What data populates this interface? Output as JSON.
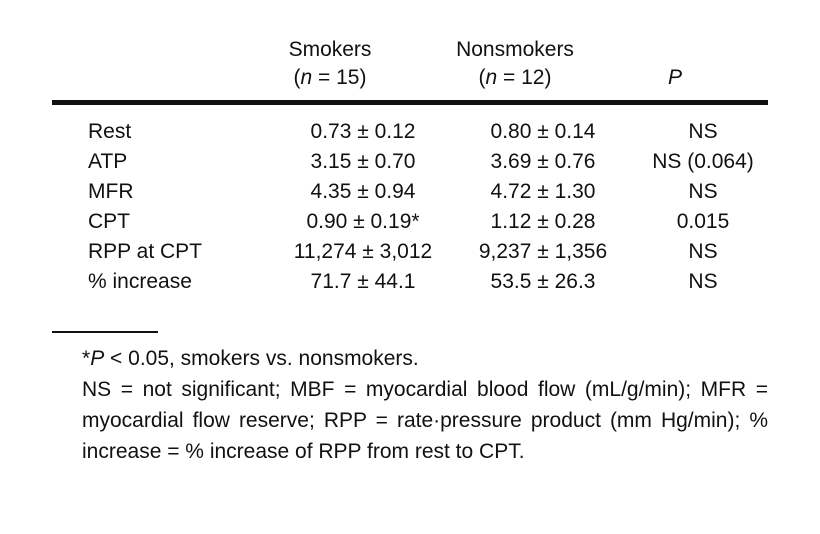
{
  "header": {
    "col1_name": "Smokers",
    "col1_n": "(n = 15)",
    "col2_name": "Nonsmokers",
    "col2_n": "(n = 12)",
    "col3_name": "P"
  },
  "rows": [
    {
      "label": "Rest",
      "smokers": "0.73 ± 0.12",
      "nonsmokers": "0.80 ± 0.14",
      "p": "NS"
    },
    {
      "label": "ATP",
      "smokers": "3.15 ± 0.70",
      "nonsmokers": "3.69 ± 0.76",
      "p": "NS (0.064)"
    },
    {
      "label": "MFR",
      "smokers": "4.35 ± 0.94",
      "nonsmokers": "4.72 ± 1.30",
      "p": "NS"
    },
    {
      "label": "CPT",
      "smokers": "0.90 ± 0.19*",
      "nonsmokers": "1.12 ± 0.28",
      "p": "0.015"
    },
    {
      "label": "RPP at CPT",
      "smokers": "11,274 ± 3,012",
      "nonsmokers": "9,237 ± 1,356",
      "p": "NS"
    },
    {
      "label": "% increase",
      "smokers": "71.7 ± 44.1",
      "nonsmokers": "53.5 ± 26.3",
      "p": "NS"
    }
  ],
  "footnotes": {
    "line1": "*P < 0.05, smokers vs. nonsmokers.",
    "line2": "NS = not significant; MBF = myocardial blood flow (mL/g/min); MFR = myocardial flow reserve; RPP = rate·pressure product (mm Hg/min); % increase = % increase of RPP from rest to CPT."
  }
}
